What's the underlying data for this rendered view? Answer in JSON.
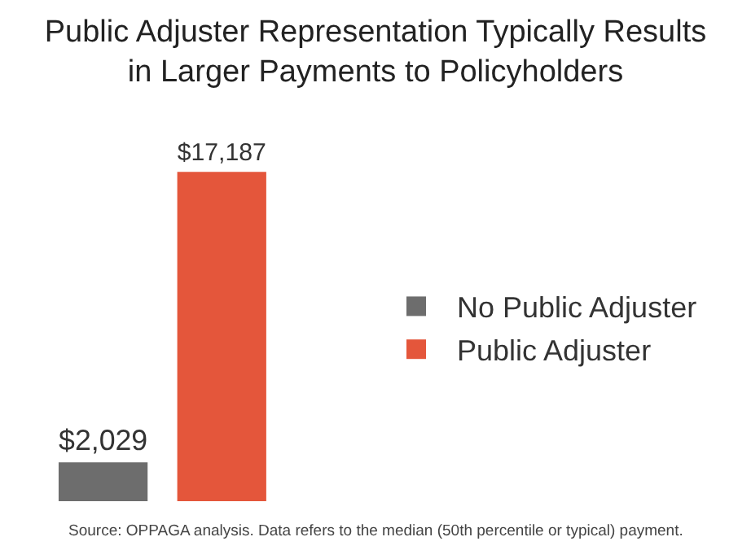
{
  "chart_data": {
    "type": "bar",
    "title": "Public Adjuster Representation Typically Results in Larger Payments to Policyholders",
    "categories": [
      null
    ],
    "series": [
      {
        "name": "No Public Adjuster",
        "color": "#6d6d6d",
        "values": [
          2029
        ],
        "value_labels": [
          "$2,029"
        ]
      },
      {
        "name": "Public Adjuster",
        "color": "#e4563b",
        "values": [
          17187
        ],
        "value_labels": [
          "$17,187"
        ]
      }
    ],
    "legend": "right",
    "tick_labels": false,
    "grid": false,
    "annotations": [
      "Source: OPPAGA analysis. Data refers to the median (50th percentile or typical) payment."
    ]
  }
}
